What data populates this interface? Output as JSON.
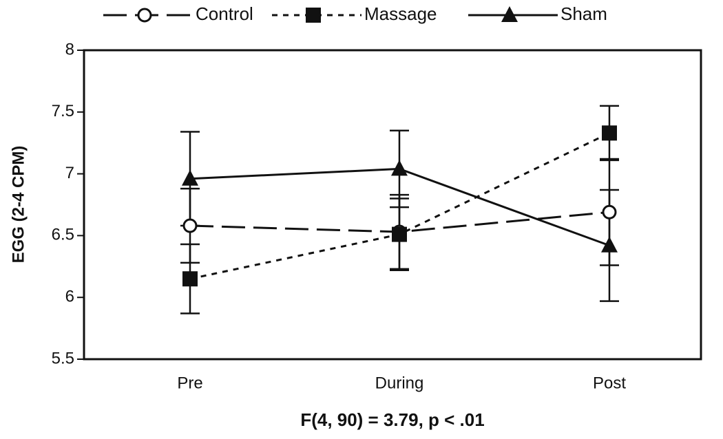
{
  "chart_data": {
    "type": "line",
    "y_label": "EGG (2-4 CPM)",
    "annotation": "F(4, 90) = 3.79, p < .01",
    "categories": [
      "Pre",
      "During",
      "Post"
    ],
    "ylim": [
      5.5,
      8
    ],
    "yticks": [
      5.5,
      6,
      6.5,
      7,
      7.5,
      8
    ],
    "series": [
      {
        "name": "Control",
        "color": "#111111",
        "dash": "long",
        "marker": "open-circle",
        "values": [
          6.58,
          6.53,
          6.69
        ],
        "errors": [
          0.3,
          0.3,
          0.43
        ]
      },
      {
        "name": "Massage",
        "color": "#111111",
        "dash": "short",
        "marker": "square",
        "values": [
          6.15,
          6.51,
          7.33
        ],
        "errors": [
          0.28,
          0.29,
          0.22
        ]
      },
      {
        "name": "Sham",
        "color": "#111111",
        "dash": "solid",
        "marker": "triangle",
        "values": [
          6.96,
          7.04,
          6.42
        ],
        "errors": [
          0.38,
          0.31,
          0.45
        ]
      }
    ]
  }
}
